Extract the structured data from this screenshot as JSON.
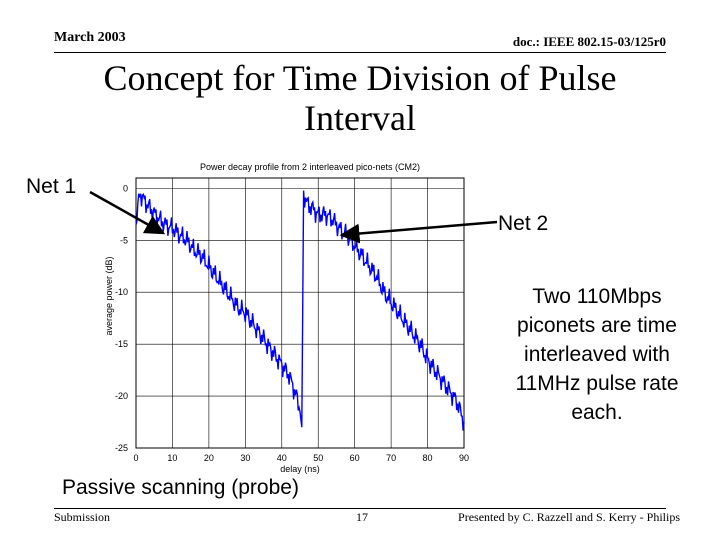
{
  "header": {
    "date": "March 2003",
    "doc_id": "doc.: IEEE 802.15-03/125r0"
  },
  "slide": {
    "title": "Concept for Time Division of Pulse Interval",
    "net1_label": "Net 1",
    "net2_label": "Net 2",
    "note": "Two 110Mbps piconets are time interleaved with 11MHz pulse rate each.",
    "caption": "Passive scanning (probe)"
  },
  "footer": {
    "left": "Submission",
    "page": "17",
    "right": "Presented by C. Razzell and S. Kerry - Philips"
  },
  "colors": {
    "series": "#0000ff",
    "arrow": "#000000"
  },
  "chart_data": {
    "type": "line",
    "title": "Power decay profile from 2 interleaved pico-nets (CM2)",
    "xlabel": "delay (ns)",
    "ylabel": "average power (dB)",
    "xlim": [
      0,
      90
    ],
    "ylim": [
      -25,
      1
    ],
    "xticks": [
      0,
      10,
      20,
      30,
      40,
      50,
      60,
      70,
      80,
      90
    ],
    "yticks": [
      0,
      -5,
      -10,
      -15,
      -20,
      -25
    ],
    "grid": true,
    "series": [
      {
        "x": [
          0,
          1,
          2,
          4,
          6,
          8,
          10,
          12,
          14,
          16,
          18,
          20,
          22,
          24,
          26,
          28,
          30,
          32,
          34,
          36,
          38,
          40,
          42,
          44,
          45,
          45.5,
          46,
          47,
          48,
          50,
          52,
          54,
          56,
          58,
          60,
          62,
          64,
          66,
          68,
          70,
          72,
          74,
          76,
          78,
          80,
          82,
          84,
          86,
          88,
          90
        ],
        "y": [
          -3.5,
          -0.5,
          -1.0,
          -2.0,
          -2.8,
          -3.5,
          -3.8,
          -4.5,
          -5.0,
          -6.0,
          -6.5,
          -7.5,
          -8.5,
          -9.5,
          -10.5,
          -11.5,
          -12.0,
          -13.0,
          -14.0,
          -15.0,
          -16.0,
          -17.0,
          -18.0,
          -20.0,
          -21.5,
          -23.0,
          -0.5,
          -1.5,
          -1.8,
          -2.5,
          -2.5,
          -3.0,
          -4.0,
          -4.5,
          -5.5,
          -6.5,
          -7.5,
          -8.5,
          -10.0,
          -11.0,
          -12.0,
          -13.0,
          -14.0,
          -15.0,
          -16.5,
          -17.5,
          -18.5,
          -19.5,
          -20.5,
          -22.5
        ]
      }
    ]
  }
}
